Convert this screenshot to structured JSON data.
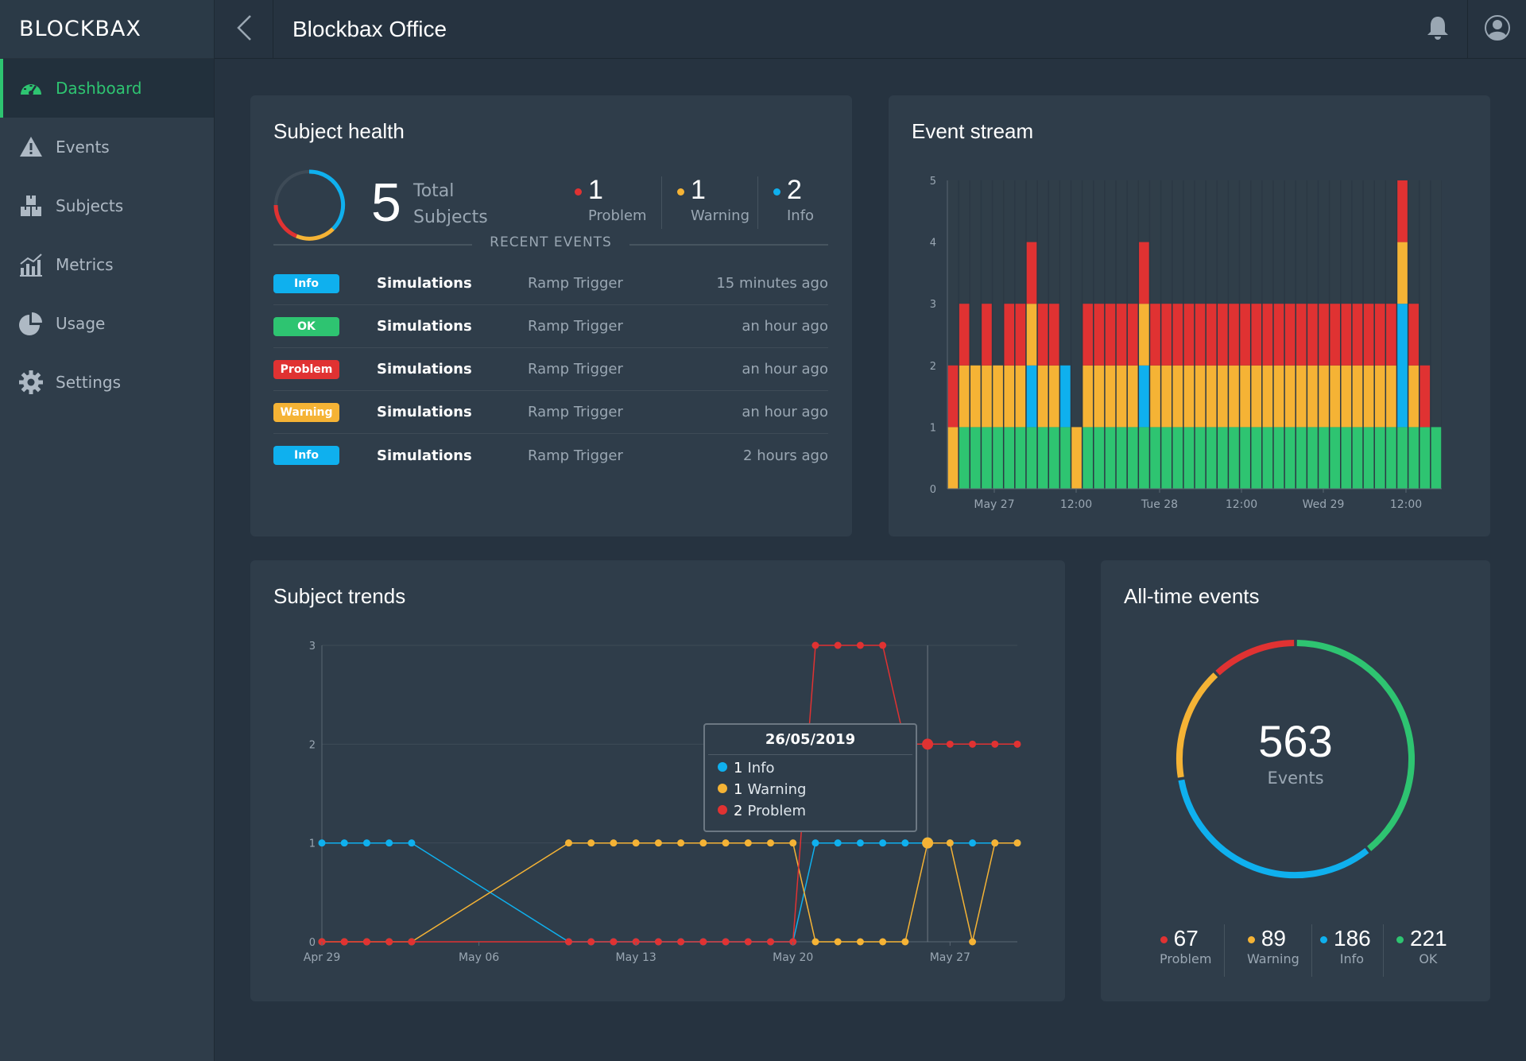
{
  "app": {
    "logo_text": "BLOCKBAX",
    "page_title": "Blockbax Office"
  },
  "colors": {
    "problem": "#e03232",
    "warning": "#f5b335",
    "info": "#0fb0ee",
    "ok": "#2ec471",
    "accent": "#2ec471"
  },
  "sidebar": {
    "items": [
      {
        "label": "Dashboard",
        "icon": "speedometer-icon",
        "active": true
      },
      {
        "label": "Events",
        "icon": "warning-icon",
        "active": false
      },
      {
        "label": "Subjects",
        "icon": "boxes-icon",
        "active": false
      },
      {
        "label": "Metrics",
        "icon": "chart-icon",
        "active": false
      },
      {
        "label": "Usage",
        "icon": "pie-icon",
        "active": false
      },
      {
        "label": "Settings",
        "icon": "gear-icon",
        "active": false
      }
    ]
  },
  "header": {
    "back_icon": "chevron-left-icon",
    "bell_icon": "bell-icon",
    "user_icon": "user-icon"
  },
  "subject_health": {
    "title": "Subject health",
    "total": "5",
    "total_label": "Total Subjects",
    "stats": [
      {
        "value": "1",
        "label": "Problem",
        "color": "#e03232"
      },
      {
        "value": "1",
        "label": "Warning",
        "color": "#f5b335"
      },
      {
        "value": "2",
        "label": "Info",
        "color": "#0fb0ee"
      }
    ],
    "recent_label": "RECENT EVENTS",
    "events": [
      {
        "badge": "Info",
        "badge_color": "#0fb0ee",
        "subject": "Simulations",
        "trigger": "Ramp Trigger",
        "time": "15 minutes ago"
      },
      {
        "badge": "OK",
        "badge_color": "#2ec471",
        "subject": "Simulations",
        "trigger": "Ramp Trigger",
        "time": "an hour ago"
      },
      {
        "badge": "Problem",
        "badge_color": "#e03232",
        "subject": "Simulations",
        "trigger": "Ramp Trigger",
        "time": "an hour ago"
      },
      {
        "badge": "Warning",
        "badge_color": "#f5b335",
        "subject": "Simulations",
        "trigger": "Ramp Trigger",
        "time": "an hour ago"
      },
      {
        "badge": "Info",
        "badge_color": "#0fb0ee",
        "subject": "Simulations",
        "trigger": "Ramp Trigger",
        "time": "2 hours ago"
      }
    ]
  },
  "event_stream": {
    "title": "Event stream",
    "chart_data": {
      "type": "bar",
      "stacked": true,
      "ylim": [
        0,
        5
      ],
      "yticks": [
        "0",
        "1",
        "2",
        "3",
        "4",
        "5"
      ],
      "xticks": [
        "May 27",
        "12:00",
        "Tue 28",
        "12:00",
        "Wed 29",
        "12:00"
      ],
      "series_order": [
        "ok",
        "info",
        "warning",
        "problem"
      ],
      "bars": [
        {
          "ok": 0,
          "info": 0,
          "warning": 1,
          "problem": 1
        },
        {
          "ok": 1,
          "info": 0,
          "warning": 1,
          "problem": 1
        },
        {
          "ok": 1,
          "info": 0,
          "warning": 1,
          "problem": 0
        },
        {
          "ok": 1,
          "info": 0,
          "warning": 1,
          "problem": 1
        },
        {
          "ok": 1,
          "info": 0,
          "warning": 1,
          "problem": 0
        },
        {
          "ok": 1,
          "info": 0,
          "warning": 1,
          "problem": 1
        },
        {
          "ok": 1,
          "info": 0,
          "warning": 1,
          "problem": 1
        },
        {
          "ok": 1,
          "info": 1,
          "warning": 1,
          "problem": 1
        },
        {
          "ok": 1,
          "info": 0,
          "warning": 1,
          "problem": 1
        },
        {
          "ok": 1,
          "info": 0,
          "warning": 1,
          "problem": 1
        },
        {
          "ok": 1,
          "info": 1,
          "warning": 0,
          "problem": 0
        },
        {
          "ok": 0,
          "info": 0,
          "warning": 1,
          "problem": 0
        },
        {
          "ok": 1,
          "info": 0,
          "warning": 1,
          "problem": 1
        },
        {
          "ok": 1,
          "info": 0,
          "warning": 1,
          "problem": 1
        },
        {
          "ok": 1,
          "info": 0,
          "warning": 1,
          "problem": 1
        },
        {
          "ok": 1,
          "info": 0,
          "warning": 1,
          "problem": 1
        },
        {
          "ok": 1,
          "info": 0,
          "warning": 1,
          "problem": 1
        },
        {
          "ok": 1,
          "info": 1,
          "warning": 1,
          "problem": 1
        },
        {
          "ok": 1,
          "info": 0,
          "warning": 1,
          "problem": 1
        },
        {
          "ok": 1,
          "info": 0,
          "warning": 1,
          "problem": 1
        },
        {
          "ok": 1,
          "info": 0,
          "warning": 1,
          "problem": 1
        },
        {
          "ok": 1,
          "info": 0,
          "warning": 1,
          "problem": 1
        },
        {
          "ok": 1,
          "info": 0,
          "warning": 1,
          "problem": 1
        },
        {
          "ok": 1,
          "info": 0,
          "warning": 1,
          "problem": 1
        },
        {
          "ok": 1,
          "info": 0,
          "warning": 1,
          "problem": 1
        },
        {
          "ok": 1,
          "info": 0,
          "warning": 1,
          "problem": 1
        },
        {
          "ok": 1,
          "info": 0,
          "warning": 1,
          "problem": 1
        },
        {
          "ok": 1,
          "info": 0,
          "warning": 1,
          "problem": 1
        },
        {
          "ok": 1,
          "info": 0,
          "warning": 1,
          "problem": 1
        },
        {
          "ok": 1,
          "info": 0,
          "warning": 1,
          "problem": 1
        },
        {
          "ok": 1,
          "info": 0,
          "warning": 1,
          "problem": 1
        },
        {
          "ok": 1,
          "info": 0,
          "warning": 1,
          "problem": 1
        },
        {
          "ok": 1,
          "info": 0,
          "warning": 1,
          "problem": 1
        },
        {
          "ok": 1,
          "info": 0,
          "warning": 1,
          "problem": 1
        },
        {
          "ok": 1,
          "info": 0,
          "warning": 1,
          "problem": 1
        },
        {
          "ok": 1,
          "info": 0,
          "warning": 1,
          "problem": 1
        },
        {
          "ok": 1,
          "info": 0,
          "warning": 1,
          "problem": 1
        },
        {
          "ok": 1,
          "info": 0,
          "warning": 1,
          "problem": 1
        },
        {
          "ok": 1,
          "info": 0,
          "warning": 1,
          "problem": 1
        },
        {
          "ok": 1,
          "info": 0,
          "warning": 1,
          "problem": 1
        },
        {
          "ok": 1,
          "info": 2,
          "warning": 1,
          "problem": 1
        },
        {
          "ok": 1,
          "info": 0,
          "warning": 1,
          "problem": 1
        },
        {
          "ok": 1,
          "info": 0,
          "warning": 0,
          "problem": 1
        },
        {
          "ok": 1,
          "info": 0,
          "warning": 0,
          "problem": 0
        }
      ],
      "bars_note": ""
    }
  },
  "subject_trends": {
    "title": "Subject trends",
    "chart_data": {
      "type": "line",
      "ylim": [
        0,
        3
      ],
      "yticks": [
        "0",
        "1",
        "2",
        "3"
      ],
      "xticks": [
        "Apr 29",
        "May 06",
        "May 13",
        "May 20",
        "May 27"
      ],
      "x_dates": [
        "Apr 29",
        "Apr 30",
        "May 01",
        "May 02",
        "May 03",
        "May 04",
        "May 05",
        "May 06",
        "May 07",
        "May 08",
        "May 09",
        "May 10",
        "May 11",
        "May 12",
        "May 13",
        "May 14",
        "May 15",
        "May 16",
        "May 17",
        "May 18",
        "May 19",
        "May 20",
        "May 21",
        "May 22",
        "May 23",
        "May 24",
        "May 25",
        "May 26",
        "May 27",
        "May 28",
        "May 29",
        "May 30"
      ],
      "series": [
        {
          "name": "Info",
          "color": "#0fb0ee",
          "values": [
            1,
            1,
            1,
            1,
            1,
            null,
            null,
            null,
            null,
            null,
            null,
            0,
            0,
            0,
            0,
            0,
            0,
            0,
            0,
            0,
            0,
            0,
            1,
            1,
            1,
            1,
            1,
            1,
            1,
            1,
            1,
            1
          ]
        },
        {
          "name": "Warning",
          "color": "#f5b335",
          "values": [
            0,
            0,
            0,
            0,
            0,
            null,
            null,
            null,
            null,
            null,
            null,
            1,
            1,
            1,
            1,
            1,
            1,
            1,
            1,
            1,
            1,
            1,
            0,
            0,
            0,
            0,
            0,
            1,
            1,
            0,
            1,
            1
          ]
        },
        {
          "name": "Problem",
          "color": "#e03232",
          "values": [
            0,
            0,
            0,
            0,
            0,
            null,
            null,
            null,
            null,
            null,
            null,
            0,
            0,
            0,
            0,
            0,
            0,
            0,
            0,
            0,
            0,
            0,
            3,
            3,
            3,
            3,
            2,
            2,
            2,
            2,
            2,
            2
          ]
        }
      ],
      "tooltip": {
        "date": "26/05/2019",
        "items": [
          {
            "value": "1",
            "label": "Info",
            "color": "#0fb0ee"
          },
          {
            "value": "1",
            "label": "Warning",
            "color": "#f5b335"
          },
          {
            "value": "2",
            "label": "Problem",
            "color": "#e03232"
          }
        ]
      }
    }
  },
  "all_time": {
    "title": "All-time events",
    "total": "563",
    "total_label": "Events",
    "chart_data": {
      "type": "pie",
      "donut": true,
      "slices": [
        {
          "name": "Problem",
          "value": 67,
          "color": "#e03232"
        },
        {
          "name": "Warning",
          "value": 89,
          "color": "#f5b335"
        },
        {
          "name": "Info",
          "value": 186,
          "color": "#0fb0ee"
        },
        {
          "name": "OK",
          "value": 221,
          "color": "#2ec471"
        }
      ]
    },
    "stats": [
      {
        "value": "67",
        "label": "Problem",
        "color": "#e03232"
      },
      {
        "value": "89",
        "label": "Warning",
        "color": "#f5b335"
      },
      {
        "value": "186",
        "label": "Info",
        "color": "#0fb0ee"
      },
      {
        "value": "221",
        "label": "OK",
        "color": "#2ec471"
      }
    ]
  }
}
